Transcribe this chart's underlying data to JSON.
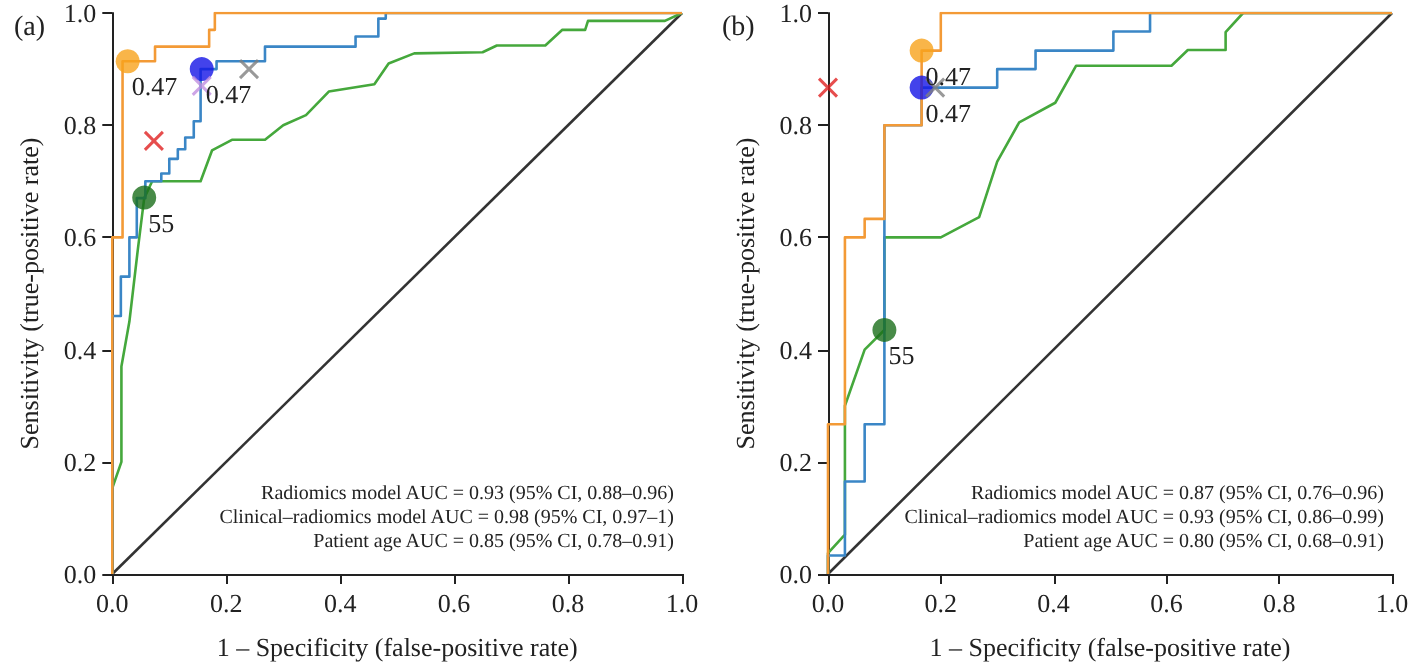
{
  "chart_data": [
    {
      "type": "line",
      "title": "(a)",
      "xlabel": "1 – Specificity (false-positive rate)",
      "ylabel": "Sensitivity (true-positive rate)",
      "xlim": [
        0,
        1
      ],
      "ylim": [
        0,
        1
      ],
      "xticks": [
        {
          "value": 0,
          "label": "0.0"
        },
        {
          "value": 0.2,
          "label": "0.2"
        },
        {
          "value": 0.4,
          "label": "0.4"
        },
        {
          "value": 0.6,
          "label": "0.6"
        },
        {
          "value": 0.8,
          "label": "0.8"
        },
        {
          "value": 1,
          "label": "1.0"
        }
      ],
      "yticks": [
        {
          "value": 0,
          "label": "0.0"
        },
        {
          "value": 0.2,
          "label": "0.2"
        },
        {
          "value": 0.4,
          "label": "0.4"
        },
        {
          "value": 0.6,
          "label": "0.6"
        },
        {
          "value": 0.8,
          "label": "0.8"
        },
        {
          "value": 1,
          "label": "1.0"
        }
      ],
      "grid": false,
      "line_style": "solid",
      "series": [
        {
          "type": "line",
          "marker": "none",
          "color": "#333333",
          "x": [
            0,
            1
          ],
          "values": [
            0,
            1
          ]
        },
        {
          "type": "line",
          "marker": "none",
          "color": "#45a83c",
          "x": [
            0,
            0,
            0.016,
            0.016,
            0.03,
            0.045,
            0.056,
            0.07,
            0.09,
            0.155,
            0.175,
            0.21,
            0.268,
            0.3,
            0.34,
            0.38,
            0.46,
            0.485,
            0.53,
            0.65,
            0.675,
            0.76,
            0.79,
            0.83,
            0.835,
            0.97,
            1
          ],
          "values": [
            0,
            0.153,
            0.2,
            0.37,
            0.45,
            0.58,
            0.67,
            0.7,
            0.7,
            0.7,
            0.755,
            0.774,
            0.774,
            0.8,
            0.818,
            0.86,
            0.873,
            0.91,
            0.928,
            0.93,
            0.942,
            0.942,
            0.97,
            0.97,
            0.986,
            0.986,
            1
          ]
        },
        {
          "type": "line",
          "marker": "none",
          "color": "#3a86c6",
          "x": [
            0,
            0,
            0.007,
            0.015,
            0.015,
            0.03,
            0.03,
            0.043,
            0.043,
            0.058,
            0.058,
            0.086,
            0.086,
            0.1,
            0.1,
            0.115,
            0.115,
            0.128,
            0.128,
            0.143,
            0.143,
            0.155,
            0.155,
            0.183,
            0.183,
            0.268,
            0.268,
            0.427,
            0.427,
            0.467,
            0.467,
            0.48,
            0.48,
            1
          ],
          "values": [
            0,
            0.46,
            0.46,
            0.46,
            0.53,
            0.53,
            0.6,
            0.6,
            0.67,
            0.67,
            0.7,
            0.7,
            0.714,
            0.714,
            0.74,
            0.74,
            0.757,
            0.757,
            0.778,
            0.778,
            0.807,
            0.807,
            0.9,
            0.9,
            0.914,
            0.914,
            0.94,
            0.94,
            0.958,
            0.958,
            0.99,
            0.99,
            1,
            1
          ]
        },
        {
          "type": "line",
          "marker": "none",
          "color": "#f39a36",
          "x": [
            0,
            0,
            0.018,
            0.018,
            0.075,
            0.075,
            0.17,
            0.17,
            0.18,
            0.18,
            1
          ],
          "values": [
            0,
            0.6,
            0.6,
            0.914,
            0.914,
            0.94,
            0.94,
            0.97,
            0.97,
            1,
            1
          ]
        },
        {
          "type": "scatter",
          "marker": "circle",
          "color": "#f7a21b",
          "x": [
            0.027
          ],
          "values": [
            0.914
          ]
        },
        {
          "type": "scatter",
          "marker": "circle",
          "color": "#1414e6",
          "x": [
            0.157
          ],
          "values": [
            0.9
          ]
        },
        {
          "type": "scatter",
          "marker": "circle",
          "color": "#1a6e1a",
          "x": [
            0.056
          ],
          "values": [
            0.671
          ]
        },
        {
          "type": "scatter",
          "marker": "cross",
          "color": "#c08ee0",
          "x": [
            0.157
          ],
          "values": [
            0.87
          ]
        },
        {
          "type": "scatter",
          "marker": "cross",
          "color": "#808080",
          "x": [
            0.24
          ],
          "values": [
            0.9
          ]
        },
        {
          "type": "scatter",
          "marker": "cross",
          "color": "#e02020",
          "x": [
            0.073
          ],
          "values": [
            0.772
          ]
        }
      ],
      "annotations": [
        {
          "text": "0.47",
          "x": 0.027,
          "y": 0.914
        },
        {
          "text": "0.47",
          "x": 0.157,
          "y": 0.9
        },
        {
          "text": "55",
          "x": 0.056,
          "y": 0.671
        },
        "Radiomics model AUC = 0.93 (95% CI, 0.88–0.96)",
        "Clinical–radiomics model AUC = 0.98 (95% CI, 0.97–1)",
        "Patient age AUC = 0.85 (95% CI, 0.78–0.91)"
      ]
    },
    {
      "type": "line",
      "title": "(b)",
      "xlabel": "1 – Specificity (false-positive rate)",
      "ylabel": "Sensitivity (true-positive rate)",
      "xlim": [
        0,
        1
      ],
      "ylim": [
        0,
        1
      ],
      "xticks": [
        {
          "value": 0,
          "label": "0.0"
        },
        {
          "value": 0.2,
          "label": "0.2"
        },
        {
          "value": 0.4,
          "label": "0.4"
        },
        {
          "value": 0.6,
          "label": "0.6"
        },
        {
          "value": 0.8,
          "label": "0.8"
        },
        {
          "value": 1,
          "label": "1.0"
        }
      ],
      "yticks": [
        {
          "value": 0,
          "label": "0.0"
        },
        {
          "value": 0.2,
          "label": "0.2"
        },
        {
          "value": 0.4,
          "label": "0.4"
        },
        {
          "value": 0.6,
          "label": "0.6"
        },
        {
          "value": 0.8,
          "label": "0.8"
        },
        {
          "value": 1,
          "label": "1.0"
        }
      ],
      "grid": false,
      "line_style": "solid",
      "series": [
        {
          "type": "line",
          "marker": "none",
          "color": "#333333",
          "x": [
            0,
            1
          ],
          "values": [
            0,
            1
          ]
        },
        {
          "type": "line",
          "marker": "none",
          "color": "#45a83c",
          "x": [
            0,
            0,
            0.03,
            0.03,
            0.065,
            0.1,
            0.1,
            0.2,
            0.268,
            0.3,
            0.339,
            0.403,
            0.44,
            0.515,
            0.609,
            0.638,
            0.705,
            0.705,
            0.736,
            1
          ],
          "values": [
            0,
            0.037,
            0.07,
            0.3,
            0.4,
            0.435,
            0.6,
            0.6,
            0.636,
            0.735,
            0.805,
            0.84,
            0.906,
            0.906,
            0.906,
            0.934,
            0.934,
            0.966,
            1,
            1
          ]
        },
        {
          "type": "line",
          "marker": "none",
          "color": "#3a86c6",
          "x": [
            0,
            0,
            0.03,
            0.03,
            0.065,
            0.065,
            0.1,
            0.1,
            0.166,
            0.166,
            0.3,
            0.3,
            0.368,
            0.368,
            0.506,
            0.506,
            0.571,
            0.571,
            1
          ],
          "values": [
            0,
            0.033,
            0.033,
            0.165,
            0.165,
            0.267,
            0.267,
            0.8,
            0.8,
            0.867,
            0.867,
            0.9,
            0.9,
            0.933,
            0.933,
            0.967,
            0.967,
            1,
            1
          ]
        },
        {
          "type": "line",
          "marker": "none",
          "color": "#f39a36",
          "x": [
            0,
            0,
            0.03,
            0.03,
            0.065,
            0.065,
            0.1,
            0.1,
            0.166,
            0.166,
            0.2,
            0.2,
            1
          ],
          "values": [
            0,
            0.267,
            0.267,
            0.6,
            0.6,
            0.633,
            0.633,
            0.8,
            0.8,
            0.933,
            0.933,
            1,
            1
          ]
        },
        {
          "type": "scatter",
          "marker": "circle",
          "color": "#f7a21b",
          "x": [
            0.166
          ],
          "values": [
            0.933
          ]
        },
        {
          "type": "scatter",
          "marker": "circle",
          "color": "#1414e6",
          "x": [
            0.166
          ],
          "values": [
            0.867
          ]
        },
        {
          "type": "scatter",
          "marker": "circle",
          "color": "#1a6e1a",
          "x": [
            0.1
          ],
          "values": [
            0.435
          ]
        },
        {
          "type": "scatter",
          "marker": "cross",
          "color": "#808080",
          "x": [
            0.19
          ],
          "values": [
            0.867
          ]
        },
        {
          "type": "scatter",
          "marker": "cross",
          "color": "#e02020",
          "x": [
            0
          ],
          "values": [
            0.867
          ]
        }
      ],
      "annotations": [
        {
          "text": "0.47",
          "x": 0.166,
          "y": 0.933
        },
        {
          "text": "0.47",
          "x": 0.166,
          "y": 0.867
        },
        {
          "text": "55",
          "x": 0.1,
          "y": 0.435
        },
        "Radiomics model AUC = 0.87 (95% CI, 0.76–0.96)",
        "Clinical–radiomics model AUC = 0.93 (95% CI, 0.86–0.99)",
        "Patient age AUC = 0.80 (95% CI, 0.68–0.91)"
      ]
    }
  ]
}
